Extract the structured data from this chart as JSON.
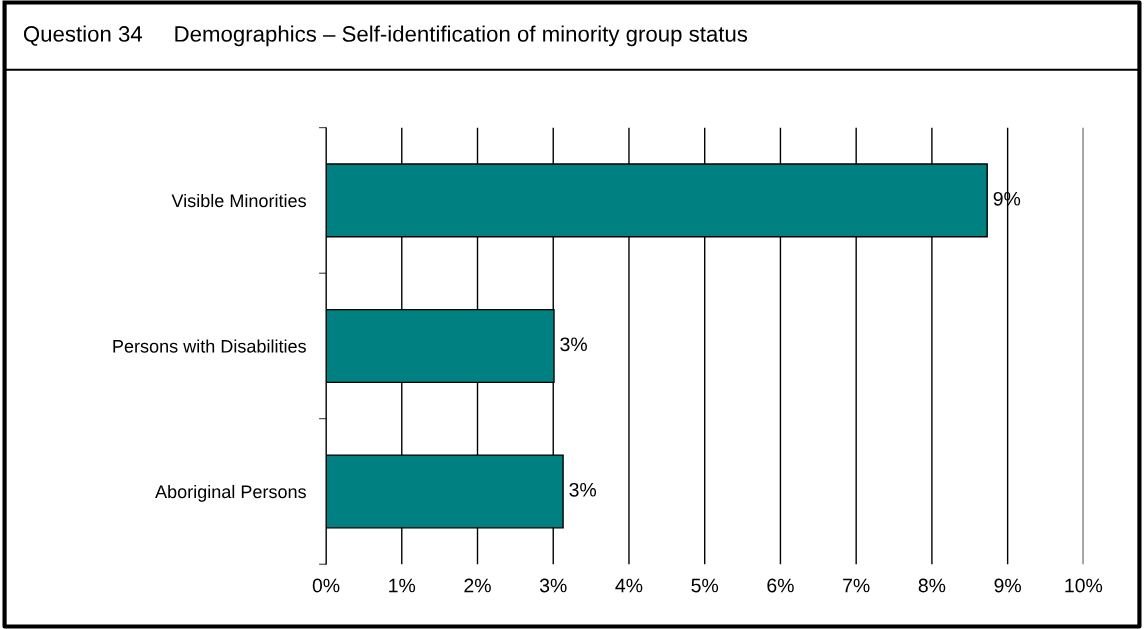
{
  "chart_data": {
    "type": "bar",
    "orientation": "horizontal",
    "title": "Question 34     Demographics – Self-identification of minority group status",
    "categories": [
      "Visible Minorities",
      "Persons with Disabilities",
      "Aboriginal Persons"
    ],
    "values": [
      8.73,
      3.01,
      3.13
    ],
    "color": "#008080",
    "value_labels": [
      "9%",
      "3%",
      "3%"
    ],
    "xlim": [
      0,
      10
    ],
    "xticks": [
      {
        "value": 0,
        "label": "0%"
      },
      {
        "value": 1,
        "label": "1%"
      },
      {
        "value": 2,
        "label": "2%"
      },
      {
        "value": 3,
        "label": "3%"
      },
      {
        "value": 4,
        "label": "4%"
      },
      {
        "value": 5,
        "label": "5%"
      },
      {
        "value": 6,
        "label": "6%"
      },
      {
        "value": 7,
        "label": "7%"
      },
      {
        "value": 8,
        "label": "8%"
      },
      {
        "value": 9,
        "label": "9%"
      },
      {
        "value": 10,
        "label": "10%"
      }
    ],
    "grid": "x",
    "legend": false
  }
}
